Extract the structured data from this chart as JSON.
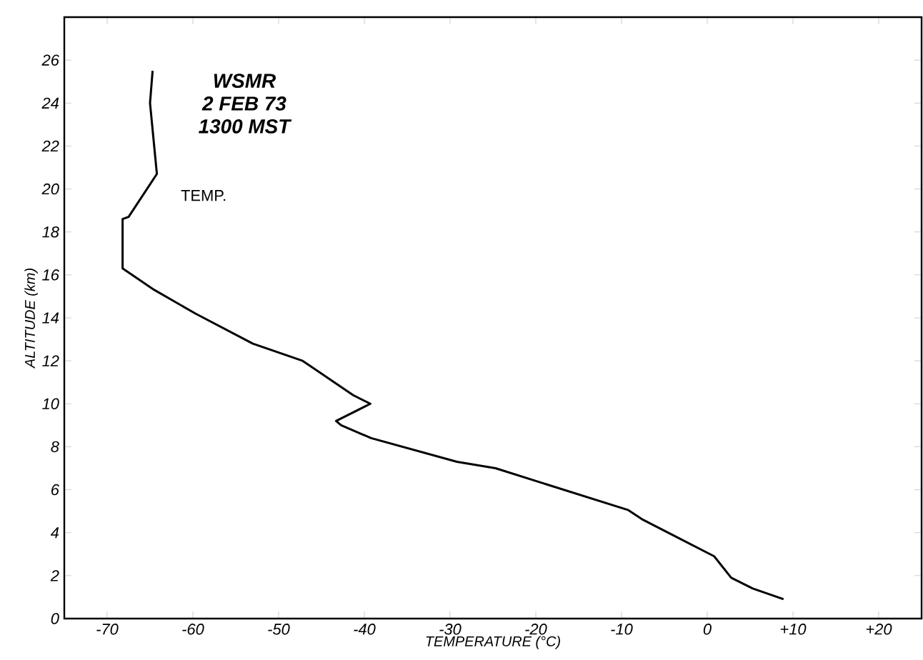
{
  "chart_data": {
    "type": "line",
    "xlabel": "TEMPERATURE (°C)",
    "ylabel": "ALTITUDE (km)",
    "annotations": [
      "WSMR",
      "2 FEB 73",
      "1300 MST"
    ],
    "x": [
      8.9,
      5.3,
      2.8,
      0.8,
      -7.5,
      -9.2,
      -24.7,
      -29.2,
      -39.2,
      -42.7,
      -43.3,
      -39.3,
      -41.3,
      -47.2,
      -53.0,
      -59.7,
      -64.5,
      -68.2,
      -68.2,
      -67.5,
      -64.2,
      -65.0,
      -64.7
    ],
    "series": [
      {
        "name": "TEMP.",
        "color": "#000000",
        "values": [
          0.9,
          1.4,
          1.9,
          2.9,
          4.6,
          5.05,
          7.0,
          7.3,
          8.4,
          9.0,
          9.2,
          10.0,
          10.4,
          12.0,
          12.8,
          14.2,
          15.3,
          16.3,
          18.6,
          18.7,
          20.7,
          24.0,
          25.5
        ]
      }
    ],
    "xlim": [
      -75,
      25
    ],
    "ylim": [
      0,
      28
    ],
    "xticks": [
      -70,
      -60,
      -50,
      -40,
      -30,
      -20,
      -10,
      0,
      {
        "value": 10,
        "label": "+10"
      },
      {
        "value": 20,
        "label": "+20"
      }
    ],
    "yticks": [
      0,
      2,
      4,
      6,
      8,
      10,
      12,
      14,
      16,
      18,
      20,
      22,
      24,
      26
    ],
    "grid": false,
    "legend": false,
    "marker": "none",
    "line_style": "solid"
  }
}
